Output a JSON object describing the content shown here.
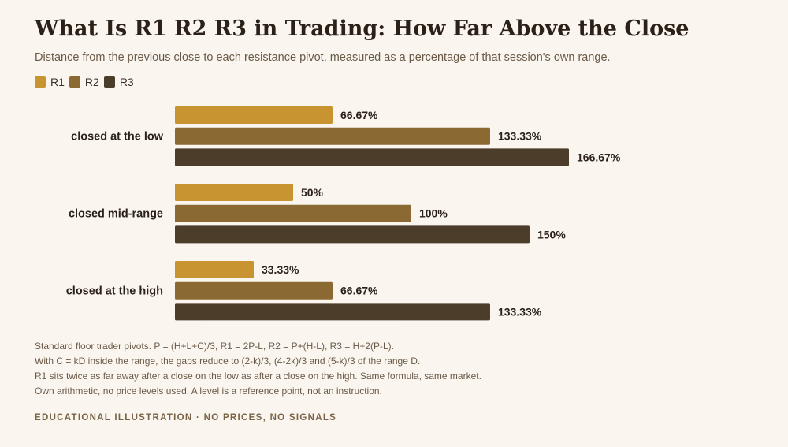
{
  "title": "What Is R1 R2 R3 in Trading: How Far Above the Close",
  "subtitle": "Distance from the previous close to each resistance pivot, measured as a percentage of that session's own range.",
  "legend": [
    {
      "name": "R1",
      "color": "#c89432"
    },
    {
      "name": "R2",
      "color": "#8a6a32"
    },
    {
      "name": "R3",
      "color": "#4c3d2b"
    }
  ],
  "chart_data": {
    "type": "bar",
    "orientation": "horizontal",
    "categories": [
      "closed at the low",
      "closed mid-range",
      "closed at the high"
    ],
    "series": [
      {
        "name": "R1",
        "values": [
          66.67,
          50,
          33.33
        ],
        "labels": [
          "66.67%",
          "50%",
          "33.33%"
        ]
      },
      {
        "name": "R2",
        "values": [
          133.33,
          100,
          66.67
        ],
        "labels": [
          "133.33%",
          "100%",
          "66.67%"
        ]
      },
      {
        "name": "R3",
        "values": [
          166.67,
          150,
          133.33
        ],
        "labels": [
          "166.67%",
          "150%",
          "133.33%"
        ]
      }
    ],
    "xlim": [
      0,
      166.67
    ],
    "grid": false,
    "legend_position": "top-left"
  },
  "notes": [
    "Standard floor trader pivots. P = (H+L+C)/3, R1 = 2P-L, R2 = P+(H-L), R3 = H+2(P-L).",
    "With C = kD inside the range, the gaps reduce to (2-k)/3, (4-2k)/3 and (5-k)/3 of the range D.",
    "R1 sits twice as far away after a close on the low as after a close on the high. Same formula, same market.",
    "Own arithmetic, no price levels used. A level is a reference point, not an instruction."
  ],
  "footer": "EDUCATIONAL ILLUSTRATION · NO PRICES, NO SIGNALS"
}
